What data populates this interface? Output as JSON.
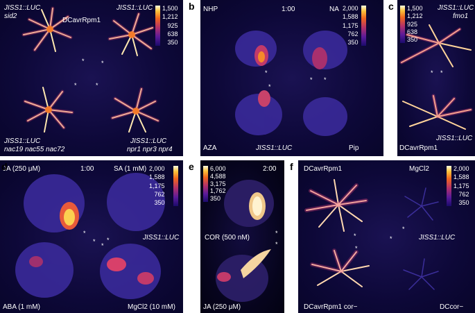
{
  "panels": {
    "a": {
      "label": "a",
      "top_left_line1": "JISS1::LUC",
      "top_left_line2": "sid2",
      "top_mid": "DCavrRpm1",
      "top_right": "JISS1::LUC",
      "bottom_left_line1": "JISS1::LUC",
      "bottom_left_line2": "nac19 nac55 nac72",
      "bottom_right_line1": "JISS1::LUC",
      "bottom_right_line2": "npr1 npr3 npr4",
      "scale": [
        "1,500",
        "1,212",
        "925",
        "638",
        "350"
      ],
      "asterisk": "*"
    },
    "b": {
      "label": "b",
      "top_left": "NHP",
      "time": "1:00",
      "top_right": "NA",
      "bottom_left": "AZA",
      "bottom_mid": "JISS1::LUC",
      "bottom_right": "Pip",
      "scale": [
        "2,000",
        "1,588",
        "1,175",
        "762",
        "350"
      ],
      "asterisk": "*"
    },
    "c": {
      "label": "c",
      "top_right_line1": "JISS1::LUC",
      "top_right_line2": "fmo1",
      "bottom_right": "JISS1::LUC",
      "bottom_left": "DCavrRpm1",
      "scale": [
        "1,500",
        "1,212",
        "925",
        "638",
        "350"
      ],
      "asterisk": "*"
    },
    "d": {
      "label": "d",
      "top_left": "JA (250 μM)",
      "time": "1:00",
      "top_right": "SA (1 mM)",
      "mid_right": "JISS1::LUC",
      "bottom_left": "ABA (1 mM)",
      "bottom_right": "MgCl2 (10 mM)",
      "scale": [
        "2,000",
        "1,588",
        "1,175",
        "762",
        "350"
      ],
      "asterisk": "*"
    },
    "e": {
      "label": "e",
      "time": "2:00",
      "mid_label": "COR (500 nM)",
      "bottom_label": "JA (250 μM)",
      "scale": [
        "6,000",
        "4,588",
        "3,175",
        "1,762",
        "350"
      ],
      "asterisk": "*"
    },
    "f": {
      "label": "f",
      "top_left": "DCavrRpm1",
      "top_right": "MgCl2",
      "mid_right": "JISS1::LUC",
      "bottom_left": "DCavrRpm1 cor−",
      "bottom_right": "DCcor−",
      "scale": [
        "2,000",
        "1,588",
        "1,175",
        "762",
        "350"
      ],
      "asterisk": "*"
    }
  }
}
